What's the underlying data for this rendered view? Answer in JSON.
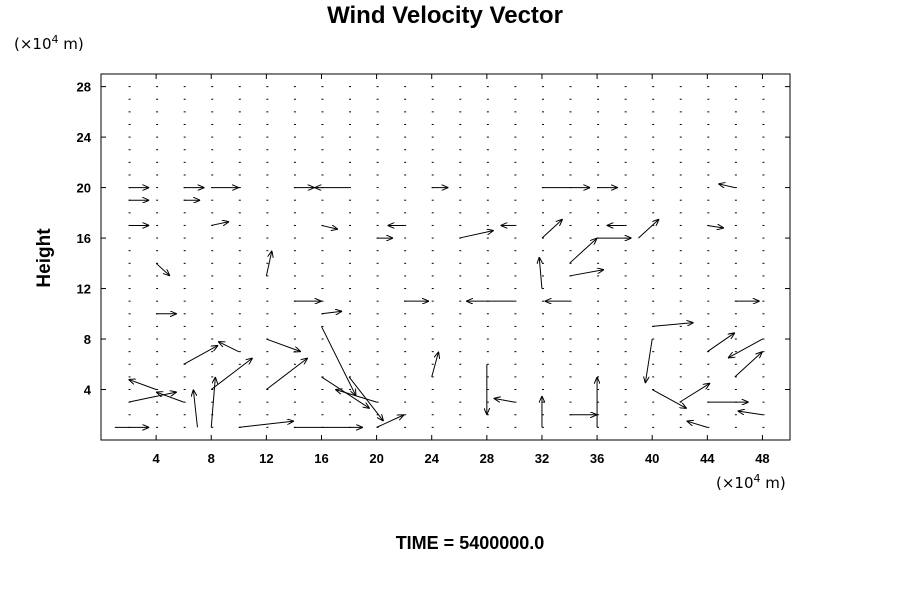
{
  "chart_data": {
    "type": "vector-field",
    "title": "Wind Velocity Vector",
    "ylabel": "Height",
    "x_unit": {
      "prefix": "(×10",
      "exp": "4",
      "suffix": " m)"
    },
    "y_unit": {
      "prefix": "(×10",
      "exp": "4",
      "suffix": " m)"
    },
    "xlim": [
      0,
      50
    ],
    "ylim": [
      0,
      29
    ],
    "x_ticks": [
      4,
      8,
      12,
      16,
      20,
      24,
      28,
      32,
      36,
      40,
      44,
      48
    ],
    "y_ticks": [
      4,
      8,
      12,
      16,
      20,
      24,
      28
    ],
    "grid": false,
    "grid_spacing": {
      "dx": 2,
      "dy": 1
    },
    "vectors": [
      {
        "x": 2,
        "y": 20,
        "u": 1.5,
        "v": 0
      },
      {
        "x": 6,
        "y": 20,
        "u": 1.5,
        "v": 0
      },
      {
        "x": 8,
        "y": 20,
        "u": 2,
        "v": 0
      },
      {
        "x": 18,
        "y": 20,
        "u": -2.5,
        "v": 0
      },
      {
        "x": 14,
        "y": 20,
        "u": 1.5,
        "v": 0
      },
      {
        "x": 24,
        "y": 20,
        "u": 1.2,
        "v": 0
      },
      {
        "x": 32,
        "y": 20,
        "u": 3.5,
        "v": 0
      },
      {
        "x": 36,
        "y": 20,
        "u": 1.5,
        "v": 0
      },
      {
        "x": 46,
        "y": 20,
        "u": -1.2,
        "v": 0.3
      },
      {
        "x": 2,
        "y": 19,
        "u": 1.5,
        "v": 0
      },
      {
        "x": 6,
        "y": 19,
        "u": 1.2,
        "v": 0
      },
      {
        "x": 2,
        "y": 17,
        "u": 1.5,
        "v": 0
      },
      {
        "x": 8,
        "y": 17,
        "u": 1.3,
        "v": 0.3
      },
      {
        "x": 16,
        "y": 17,
        "u": 1.2,
        "v": -0.3
      },
      {
        "x": 22,
        "y": 17,
        "u": -1.2,
        "v": 0
      },
      {
        "x": 30,
        "y": 17,
        "u": -1,
        "v": 0
      },
      {
        "x": 38,
        "y": 17,
        "u": -1.3,
        "v": 0
      },
      {
        "x": 44,
        "y": 17,
        "u": 1.2,
        "v": -0.2
      },
      {
        "x": 20,
        "y": 16,
        "u": 1.2,
        "v": 0
      },
      {
        "x": 26,
        "y": 16,
        "u": 2.5,
        "v": 0.6
      },
      {
        "x": 36,
        "y": 16,
        "u": 2.5,
        "v": 0
      },
      {
        "x": 32,
        "y": 16,
        "u": 1.5,
        "v": 1.5
      },
      {
        "x": 34,
        "y": 14,
        "u": 2,
        "v": 2
      },
      {
        "x": 32,
        "y": 12,
        "u": -0.2,
        "v": 2.5
      },
      {
        "x": 34,
        "y": 13,
        "u": 2.5,
        "v": 0.5
      },
      {
        "x": 39,
        "y": 16,
        "u": 1.5,
        "v": 1.5
      },
      {
        "x": 12,
        "y": 13,
        "u": 0.4,
        "v": 2
      },
      {
        "x": 4,
        "y": 14,
        "u": 1,
        "v": -1
      },
      {
        "x": 14,
        "y": 11,
        "u": 2,
        "v": 0
      },
      {
        "x": 22,
        "y": 11,
        "u": 1.8,
        "v": 0
      },
      {
        "x": 30,
        "y": 11,
        "u": -3.5,
        "v": 0
      },
      {
        "x": 34,
        "y": 11,
        "u": -1.8,
        "v": 0
      },
      {
        "x": 46,
        "y": 11,
        "u": 1.8,
        "v": 0
      },
      {
        "x": 4,
        "y": 10,
        "u": 1.5,
        "v": 0
      },
      {
        "x": 16,
        "y": 10,
        "u": 1.5,
        "v": 0.2
      },
      {
        "x": 40,
        "y": 9,
        "u": 3,
        "v": 0.3
      },
      {
        "x": 40,
        "y": 8,
        "u": -0.5,
        "v": -3.5
      },
      {
        "x": 44,
        "y": 7,
        "u": 2,
        "v": 1.5
      },
      {
        "x": 46,
        "y": 5,
        "u": 2,
        "v": 2
      },
      {
        "x": 40,
        "y": 4,
        "u": 2.5,
        "v": -1.5
      },
      {
        "x": 42,
        "y": 3,
        "u": 2.2,
        "v": 1.5
      },
      {
        "x": 44,
        "y": 3,
        "u": 3,
        "v": 0
      },
      {
        "x": 48,
        "y": 8,
        "u": -2.5,
        "v": -1.5
      },
      {
        "x": 6,
        "y": 6,
        "u": 2.5,
        "v": 1.5
      },
      {
        "x": 10,
        "y": 7,
        "u": -1.5,
        "v": 0.8
      },
      {
        "x": 12,
        "y": 8,
        "u": 2.5,
        "v": -1
      },
      {
        "x": 16,
        "y": 9,
        "u": 2.5,
        "v": -5.5
      },
      {
        "x": 18,
        "y": 5,
        "u": 2.5,
        "v": -3.5
      },
      {
        "x": 16,
        "y": 5,
        "u": 3.5,
        "v": -2.5
      },
      {
        "x": 20,
        "y": 3,
        "u": -3,
        "v": 1
      },
      {
        "x": 8,
        "y": 4,
        "u": 3,
        "v": 2.5
      },
      {
        "x": 12,
        "y": 4,
        "u": 3,
        "v": 2.5
      },
      {
        "x": 2,
        "y": 3,
        "u": 3.5,
        "v": 0.8
      },
      {
        "x": 4,
        "y": 4,
        "u": -2,
        "v": 0.8
      },
      {
        "x": 6,
        "y": 3,
        "u": -2,
        "v": 0.8
      },
      {
        "x": 7,
        "y": 1,
        "u": -0.3,
        "v": 3
      },
      {
        "x": 8,
        "y": 1,
        "u": 0.3,
        "v": 4
      },
      {
        "x": 10,
        "y": 1,
        "u": 4,
        "v": 0.5
      },
      {
        "x": 14,
        "y": 1,
        "u": 5,
        "v": 0
      },
      {
        "x": 20,
        "y": 1,
        "u": 2,
        "v": 1
      },
      {
        "x": 1,
        "y": 1,
        "u": 2.5,
        "v": 0
      },
      {
        "x": 28,
        "y": 6,
        "u": 0,
        "v": -4
      },
      {
        "x": 36,
        "y": 1,
        "u": 0,
        "v": 4
      },
      {
        "x": 32,
        "y": 1,
        "u": 0,
        "v": 2.5
      },
      {
        "x": 24,
        "y": 5,
        "u": 0.5,
        "v": 2
      },
      {
        "x": 34,
        "y": 2,
        "u": 2,
        "v": 0
      },
      {
        "x": 30,
        "y": 3,
        "u": -1.5,
        "v": 0.3
      },
      {
        "x": 44,
        "y": 1,
        "u": -1.5,
        "v": 0.5
      },
      {
        "x": 48,
        "y": 2,
        "u": -1.8,
        "v": 0.3
      }
    ]
  },
  "footer": {
    "time_text": "TIME = 5400000.0"
  }
}
